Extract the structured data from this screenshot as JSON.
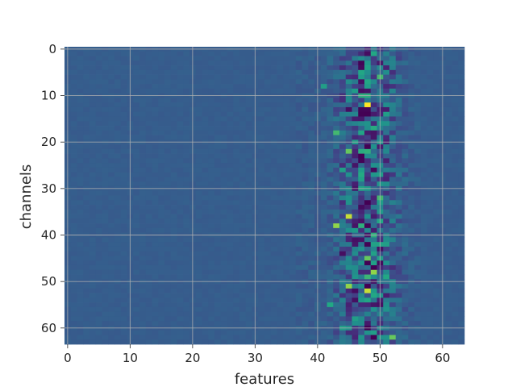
{
  "chart_data": {
    "type": "heatmap",
    "title": "",
    "xlabel": "features",
    "ylabel": "channels",
    "xlim": [
      -0.5,
      63.5
    ],
    "ylim": [
      63.5,
      -0.5
    ],
    "x_ticks": [
      0,
      10,
      20,
      30,
      40,
      50,
      60
    ],
    "y_ticks": [
      0,
      10,
      20,
      30,
      40,
      50,
      60
    ],
    "x_tick_labels": [
      "0",
      "10",
      "20",
      "30",
      "40",
      "50",
      "60"
    ],
    "y_tick_labels": [
      "0",
      "10",
      "20",
      "30",
      "40",
      "50",
      "60"
    ],
    "grid": true,
    "colormap": "viridis",
    "n_rows": 64,
    "n_cols": 64,
    "background_value": 0.37,
    "active_band": {
      "feature_start": 40,
      "feature_end": 56,
      "peak_feature": 48
    },
    "notable_cells": [
      {
        "channel": 6,
        "feature": 50,
        "value": 0.8
      },
      {
        "channel": 8,
        "feature": 41,
        "value": 0.7
      },
      {
        "channel": 9,
        "feature": 47,
        "value": 0.05
      },
      {
        "channel": 12,
        "feature": 48,
        "value": 1.0
      },
      {
        "channel": 13,
        "feature": 45,
        "value": 0.05
      },
      {
        "channel": 14,
        "feature": 51,
        "value": 0.7
      },
      {
        "channel": 18,
        "feature": 43,
        "value": 0.8
      },
      {
        "channel": 21,
        "feature": 48,
        "value": 0.0
      },
      {
        "channel": 22,
        "feature": 45,
        "value": 0.85
      },
      {
        "channel": 26,
        "feature": 44,
        "value": 0.7
      },
      {
        "channel": 29,
        "feature": 50,
        "value": 0.65
      },
      {
        "channel": 32,
        "feature": 50,
        "value": 0.8
      },
      {
        "channel": 36,
        "feature": 45,
        "value": 0.95
      },
      {
        "channel": 37,
        "feature": 50,
        "value": 0.75
      },
      {
        "channel": 38,
        "feature": 43,
        "value": 0.9
      },
      {
        "channel": 42,
        "feature": 51,
        "value": 0.7
      },
      {
        "channel": 44,
        "feature": 44,
        "value": 0.05
      },
      {
        "channel": 45,
        "feature": 48,
        "value": 0.85
      },
      {
        "channel": 48,
        "feature": 49,
        "value": 0.9
      },
      {
        "channel": 49,
        "feature": 51,
        "value": 0.75
      },
      {
        "channel": 51,
        "feature": 45,
        "value": 0.9
      },
      {
        "channel": 52,
        "feature": 48,
        "value": 0.95
      },
      {
        "channel": 55,
        "feature": 42,
        "value": 0.75
      },
      {
        "channel": 60,
        "feature": 44,
        "value": 0.7
      },
      {
        "channel": 62,
        "feature": 52,
        "value": 0.85
      }
    ]
  }
}
